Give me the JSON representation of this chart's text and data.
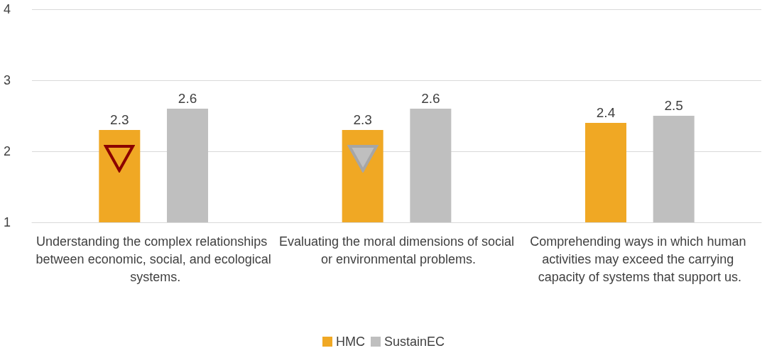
{
  "chart_data": {
    "type": "bar",
    "categories": [
      "Understanding the complex relationships between economic, social, and ecological systems.",
      "Evaluating the moral dimensions of social or environmental problems.",
      "Comprehending ways in which human activities may exceed the carrying capacity of systems that support us."
    ],
    "series": [
      {
        "name": "HMC",
        "color": "#f0a824",
        "values": [
          2.3,
          2.3,
          2.4
        ]
      },
      {
        "name": "SustainEC",
        "color": "#bfbfbf",
        "values": [
          2.6,
          2.6,
          2.5
        ]
      }
    ],
    "ylim": [
      1,
      4
    ],
    "yticks": [
      1,
      2,
      3,
      4
    ],
    "grid": "y",
    "legend": "bottom",
    "data_labels": true
  }
}
